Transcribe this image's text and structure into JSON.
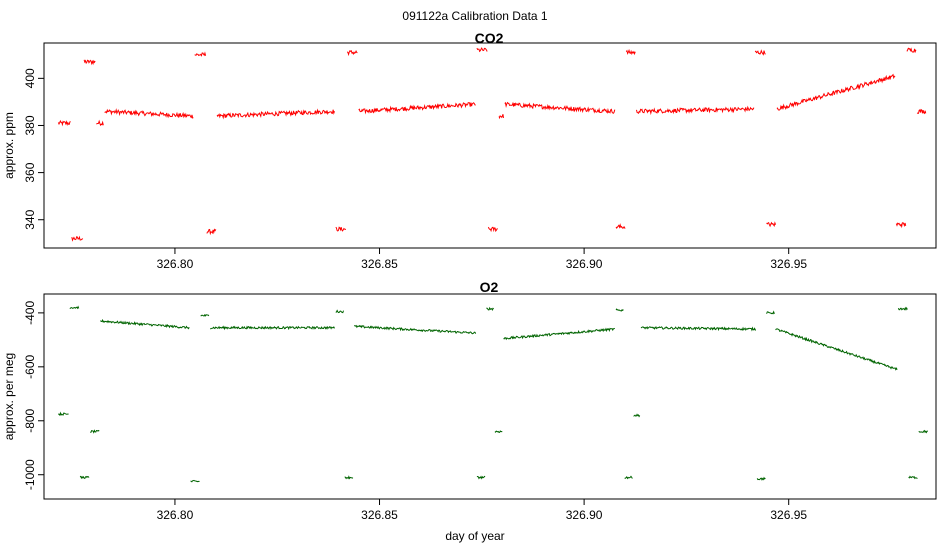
{
  "figure": {
    "title": "091122a   Calibration Data 1"
  },
  "chart_data": [
    {
      "type": "line",
      "title": "CO2",
      "xlabel": "",
      "ylabel": "approx. ppm",
      "color": "#ff0000",
      "xlim": [
        326.768,
        326.986
      ],
      "ylim": [
        328,
        415
      ],
      "xticks": [
        {
          "value": 326.8,
          "label": "326.80"
        },
        {
          "value": 326.85,
          "label": "326.85"
        },
        {
          "value": 326.9,
          "label": "326.90"
        },
        {
          "value": 326.95,
          "label": "326.95"
        }
      ],
      "yticks": [
        {
          "value": 340,
          "label": "340"
        },
        {
          "value": 360,
          "label": "360"
        },
        {
          "value": 380,
          "label": "380"
        },
        {
          "value": 400,
          "label": "400"
        }
      ],
      "segments": [
        {
          "x0": 326.7715,
          "x1": 326.7745,
          "y0": 381,
          "y1": 381
        },
        {
          "x0": 326.7748,
          "x1": 326.7775,
          "y0": 332,
          "y1": 332
        },
        {
          "x0": 326.7778,
          "x1": 326.7805,
          "y0": 407,
          "y1": 407
        },
        {
          "x0": 326.7808,
          "x1": 326.7825,
          "y0": 381,
          "y1": 381
        },
        {
          "x0": 326.7828,
          "x1": 326.8045,
          "y0": 386,
          "y1": 384
        },
        {
          "x0": 326.8048,
          "x1": 326.8075,
          "y0": 410,
          "y1": 410
        },
        {
          "x0": 326.8078,
          "x1": 326.81,
          "y0": 335,
          "y1": 335
        },
        {
          "x0": 326.8103,
          "x1": 326.839,
          "y0": 384,
          "y1": 386
        },
        {
          "x0": 326.8393,
          "x1": 326.8418,
          "y0": 336,
          "y1": 336
        },
        {
          "x0": 326.8421,
          "x1": 326.8446,
          "y0": 411,
          "y1": 411
        },
        {
          "x0": 326.8449,
          "x1": 326.8735,
          "y0": 386,
          "y1": 389
        },
        {
          "x0": 326.8738,
          "x1": 326.8763,
          "y0": 412,
          "y1": 412
        },
        {
          "x0": 326.8766,
          "x1": 326.8789,
          "y0": 336,
          "y1": 336
        },
        {
          "x0": 326.8792,
          "x1": 326.8803,
          "y0": 384,
          "y1": 384
        },
        {
          "x0": 326.8806,
          "x1": 326.9075,
          "y0": 389,
          "y1": 386
        },
        {
          "x0": 326.9078,
          "x1": 326.91,
          "y0": 337,
          "y1": 337
        },
        {
          "x0": 326.9103,
          "x1": 326.9125,
          "y0": 411,
          "y1": 411
        },
        {
          "x0": 326.9128,
          "x1": 326.9415,
          "y0": 386,
          "y1": 387
        },
        {
          "x0": 326.9418,
          "x1": 326.9443,
          "y0": 411,
          "y1": 411
        },
        {
          "x0": 326.9446,
          "x1": 326.9468,
          "y0": 338,
          "y1": 338
        },
        {
          "x0": 326.9471,
          "x1": 326.976,
          "y0": 387,
          "y1": 401
        },
        {
          "x0": 326.9763,
          "x1": 326.9786,
          "y0": 338,
          "y1": 338
        },
        {
          "x0": 326.9789,
          "x1": 326.9811,
          "y0": 412,
          "y1": 412
        },
        {
          "x0": 326.9814,
          "x1": 326.9835,
          "y0": 386,
          "y1": 386
        }
      ]
    },
    {
      "type": "line",
      "title": "O2",
      "xlabel": "day of year",
      "ylabel": "approx. per meg",
      "color": "#006400",
      "xlim": [
        326.768,
        326.986
      ],
      "ylim": [
        -1090,
        -330
      ],
      "xticks": [
        {
          "value": 326.8,
          "label": "326.80"
        },
        {
          "value": 326.85,
          "label": "326.85"
        },
        {
          "value": 326.9,
          "label": "326.90"
        },
        {
          "value": 326.95,
          "label": "326.95"
        }
      ],
      "yticks": [
        {
          "value": -1000,
          "label": "-1000"
        },
        {
          "value": -800,
          "label": "-800"
        },
        {
          "value": -600,
          "label": "-600"
        },
        {
          "value": -400,
          "label": "-400"
        }
      ],
      "segments": [
        {
          "x0": 326.7715,
          "x1": 326.774,
          "y0": -775,
          "y1": -775
        },
        {
          "x0": 326.7743,
          "x1": 326.7765,
          "y0": -380,
          "y1": -380
        },
        {
          "x0": 326.7768,
          "x1": 326.779,
          "y0": -1010,
          "y1": -1010
        },
        {
          "x0": 326.7793,
          "x1": 326.7815,
          "y0": -840,
          "y1": -840
        },
        {
          "x0": 326.7818,
          "x1": 326.8035,
          "y0": -430,
          "y1": -455
        },
        {
          "x0": 326.8038,
          "x1": 326.806,
          "y0": -1025,
          "y1": -1025
        },
        {
          "x0": 326.8063,
          "x1": 326.8083,
          "y0": -410,
          "y1": -410
        },
        {
          "x0": 326.8086,
          "x1": 326.839,
          "y0": -455,
          "y1": -455
        },
        {
          "x0": 326.8393,
          "x1": 326.8412,
          "y0": -395,
          "y1": -395
        },
        {
          "x0": 326.8415,
          "x1": 326.8435,
          "y0": -1010,
          "y1": -1010
        },
        {
          "x0": 326.8438,
          "x1": 326.8735,
          "y0": -450,
          "y1": -475
        },
        {
          "x0": 326.8738,
          "x1": 326.8758,
          "y0": -1010,
          "y1": -1010
        },
        {
          "x0": 326.8761,
          "x1": 326.8779,
          "y0": -385,
          "y1": -385
        },
        {
          "x0": 326.8782,
          "x1": 326.88,
          "y0": -840,
          "y1": -840
        },
        {
          "x0": 326.8803,
          "x1": 326.9075,
          "y0": -495,
          "y1": -460
        },
        {
          "x0": 326.9078,
          "x1": 326.9096,
          "y0": -390,
          "y1": -390
        },
        {
          "x0": 326.9099,
          "x1": 326.9118,
          "y0": -1010,
          "y1": -1010
        },
        {
          "x0": 326.9121,
          "x1": 326.9136,
          "y0": -780,
          "y1": -780
        },
        {
          "x0": 326.9139,
          "x1": 326.942,
          "y0": -455,
          "y1": -460
        },
        {
          "x0": 326.9423,
          "x1": 326.9443,
          "y0": -1015,
          "y1": -1015
        },
        {
          "x0": 326.9446,
          "x1": 326.9465,
          "y0": -400,
          "y1": -400
        },
        {
          "x0": 326.9468,
          "x1": 326.9765,
          "y0": -460,
          "y1": -610
        },
        {
          "x0": 326.9768,
          "x1": 326.979,
          "y0": -385,
          "y1": -385
        },
        {
          "x0": 326.9793,
          "x1": 326.9815,
          "y0": -1010,
          "y1": -1010
        },
        {
          "x0": 326.9818,
          "x1": 326.984,
          "y0": -840,
          "y1": -840
        }
      ]
    }
  ]
}
